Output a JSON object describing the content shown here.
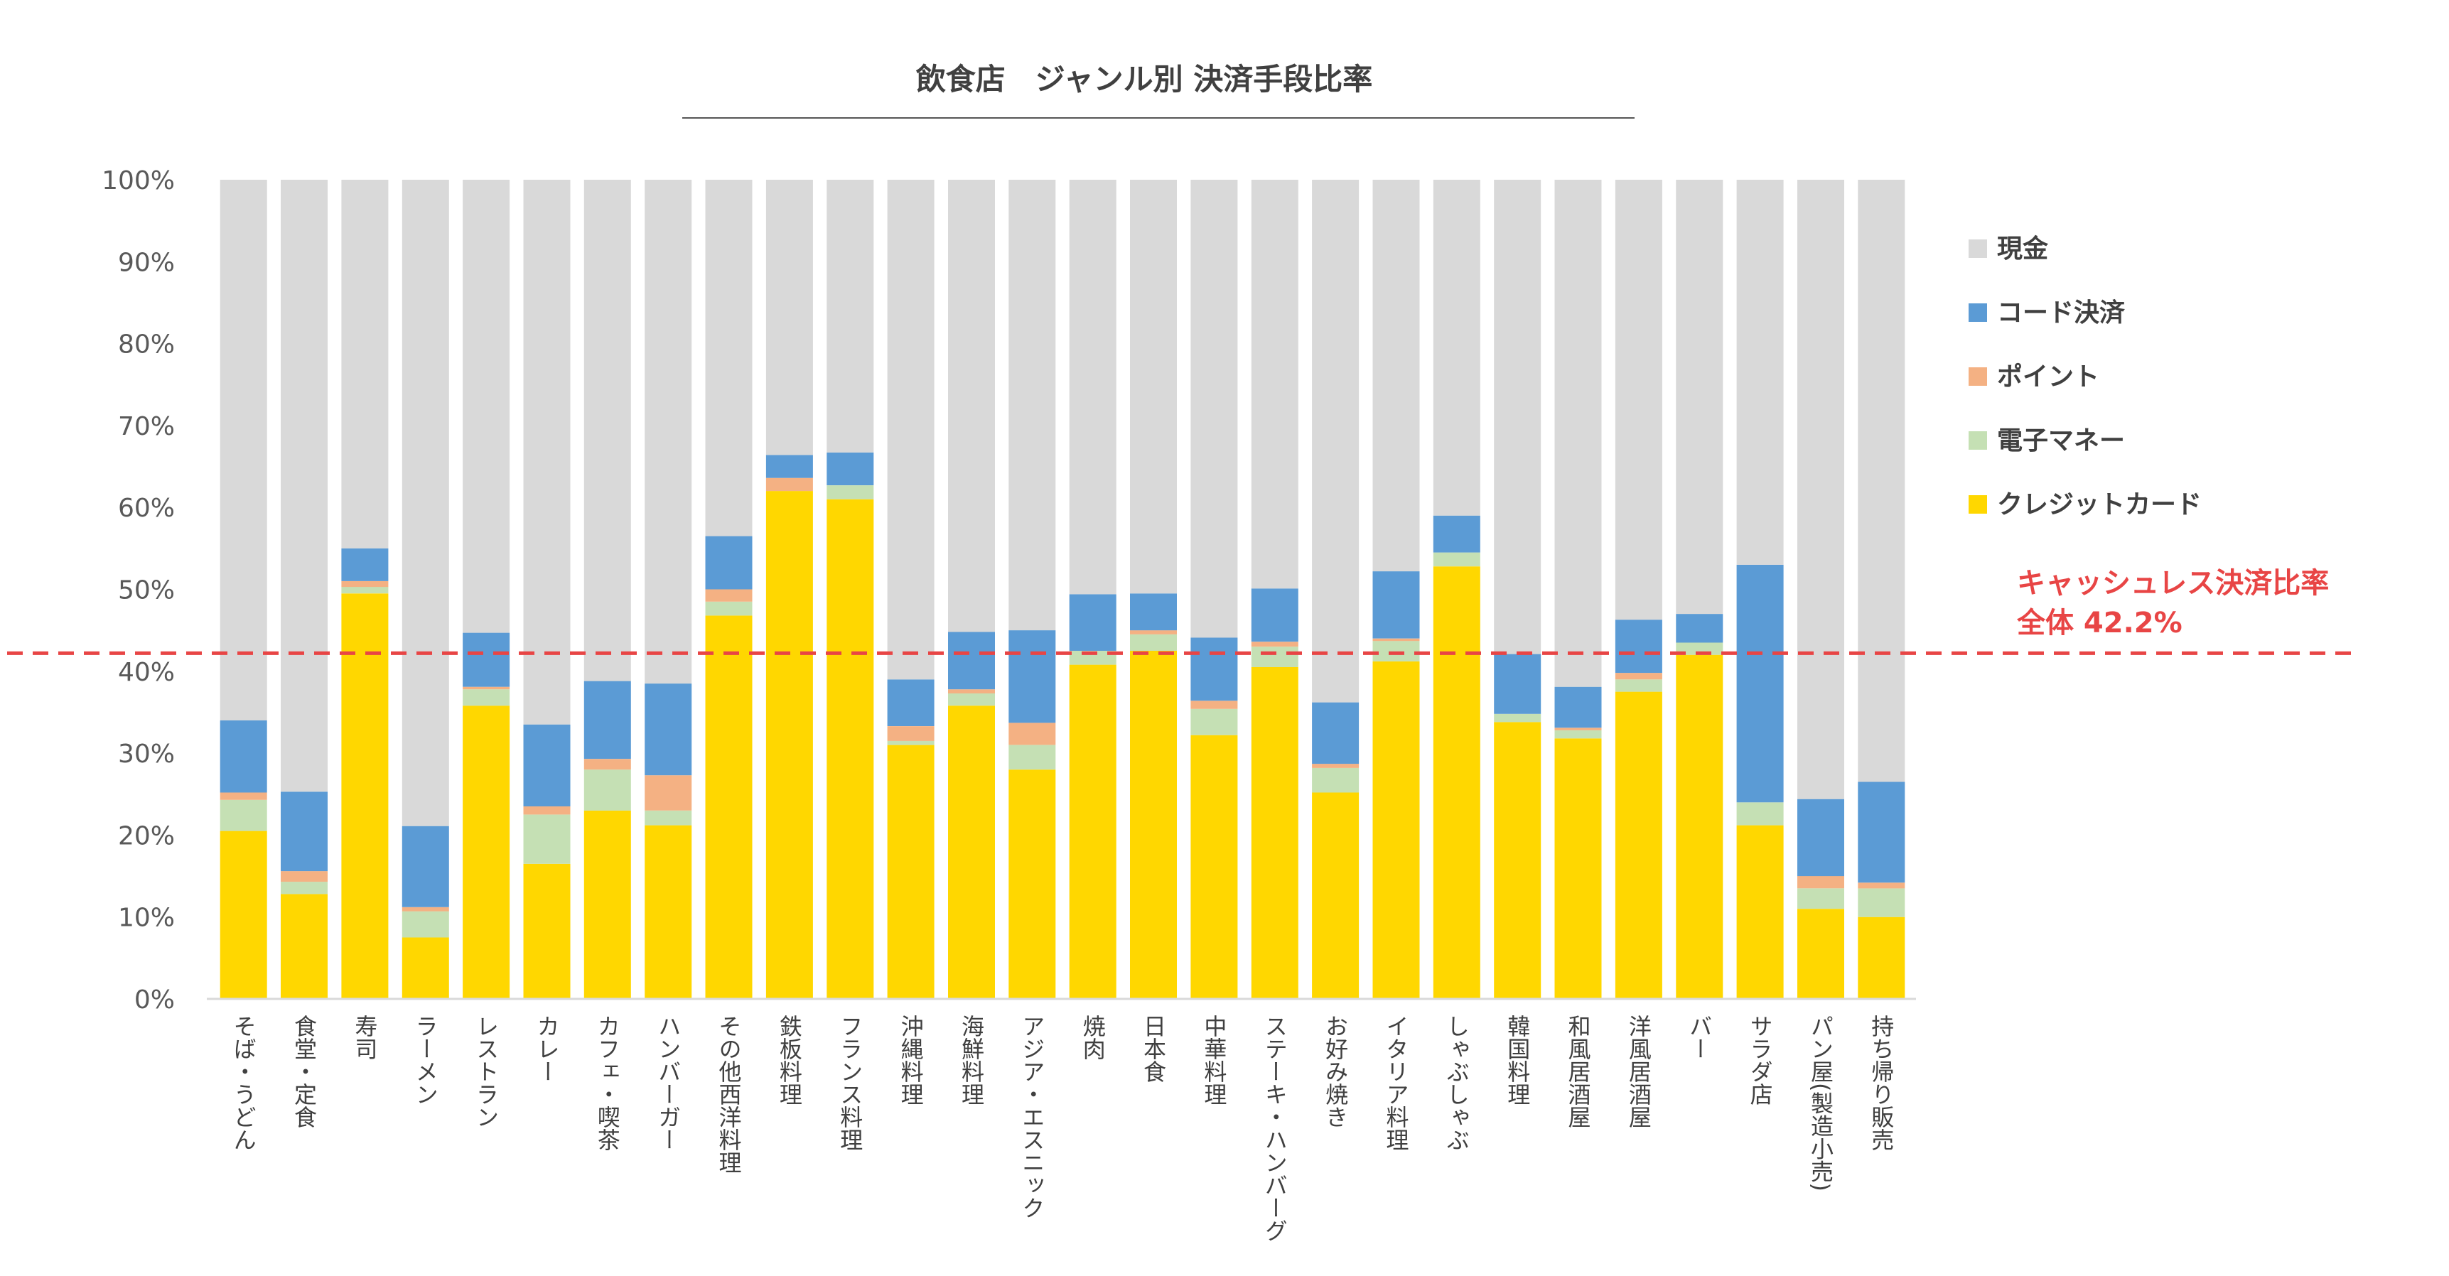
{
  "chart_data": {
    "type": "bar",
    "stacked": true,
    "title": "飲食店　ジャンル別 決済手段比率",
    "categories": [
      "そば・うどん",
      "食堂・定食",
      "寿司",
      "ラーメン",
      "レストラン",
      "カレー",
      "カフェ・喫茶",
      "ハンバーガー",
      "その他西洋料理",
      "鉄板料理",
      "フランス料理",
      "沖縄料理",
      "海鮮料理",
      "アジア・エスニック",
      "焼肉",
      "日本食",
      "中華料理",
      "ステーキ・ハンバーグ",
      "お好み焼き",
      "イタリア料理",
      "しゃぶしゃぶ",
      "韓国料理",
      "和風居酒屋",
      "洋風居酒屋",
      "バー",
      "サラダ店",
      "パン屋(製造小売)",
      "持ち帰り販売"
    ],
    "series": [
      {
        "name": "クレジットカード",
        "color": "#FFD700",
        "values": [
          20.5,
          12.8,
          49.5,
          7.5,
          35.8,
          16.5,
          23.0,
          21.2,
          46.8,
          62.0,
          61.0,
          31.0,
          35.8,
          28.0,
          40.8,
          42.5,
          32.2,
          40.5,
          25.2,
          41.2,
          52.8,
          33.8,
          31.8,
          37.5,
          42.0,
          21.2,
          11.0,
          10.0
        ]
      },
      {
        "name": "電子マネー",
        "color": "#C5E0B4",
        "values": [
          3.8,
          1.5,
          0.8,
          3.2,
          2.0,
          6.0,
          5.0,
          1.8,
          1.7,
          0,
          1.7,
          0.5,
          1.5,
          3.0,
          1.7,
          2.0,
          3.2,
          2.5,
          3.0,
          2.5,
          1.7,
          1.0,
          1.0,
          1.5,
          1.5,
          2.8,
          2.5,
          3.5
        ]
      },
      {
        "name": "ポイント",
        "color": "#F4B183",
        "values": [
          0.9,
          1.3,
          0.7,
          0.5,
          0.3,
          1.0,
          1.3,
          4.3,
          1.5,
          1.6,
          0,
          1.8,
          0.5,
          2.7,
          0,
          0.5,
          1.0,
          0.6,
          0.5,
          0.3,
          0,
          0,
          0.3,
          0.8,
          0,
          0,
          1.5,
          0.7
        ]
      },
      {
        "name": "コード決済",
        "color": "#5B9BD5",
        "values": [
          8.8,
          9.7,
          4.0,
          9.9,
          6.6,
          10.0,
          9.5,
          11.2,
          6.5,
          2.8,
          4.0,
          5.7,
          7.0,
          11.3,
          6.9,
          4.5,
          7.7,
          6.5,
          7.5,
          8.2,
          4.5,
          7.3,
          5.0,
          6.5,
          3.5,
          29.0,
          9.4,
          12.3
        ]
      },
      {
        "name": "現金",
        "color": "#D9D9D9",
        "values": [
          66.0,
          74.7,
          45.0,
          78.9,
          55.3,
          66.5,
          61.2,
          61.5,
          43.5,
          33.6,
          33.3,
          61.0,
          55.2,
          55.0,
          50.6,
          50.5,
          55.9,
          49.9,
          63.8,
          47.8,
          41.0,
          57.9,
          61.9,
          53.7,
          53.0,
          47.0,
          75.6,
          73.5
        ]
      }
    ],
    "legend_order": [
      "現金",
      "コード決済",
      "ポイント",
      "電子マネー",
      "クレジットカード"
    ],
    "legend_position": "right",
    "yticks": [
      "0%",
      "10%",
      "20%",
      "30%",
      "40%",
      "50%",
      "60%",
      "70%",
      "80%",
      "90%",
      "100%"
    ],
    "ylim": [
      0,
      100
    ],
    "reference_line": {
      "value": 42.2,
      "label_line1": "キャッシュレス決済比率",
      "label_line2": "全体 42.2%",
      "color": "#E84545"
    },
    "gridlines": false
  }
}
